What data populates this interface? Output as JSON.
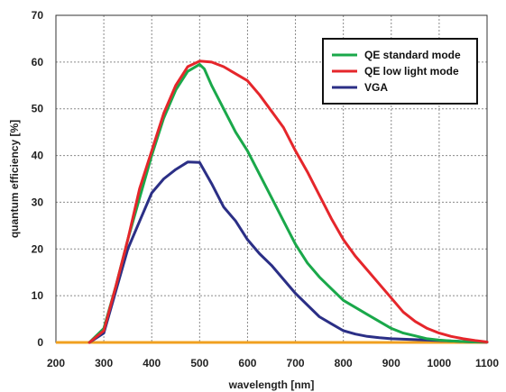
{
  "chart_data": {
    "type": "line",
    "title": "",
    "xlabel": "wavelength [nm]",
    "ylabel": "quantum efficiency [%]",
    "xlim": [
      200,
      1100
    ],
    "ylim": [
      0,
      70
    ],
    "xticks": [
      200,
      300,
      400,
      500,
      600,
      700,
      800,
      900,
      1000,
      1100
    ],
    "yticks": [
      0,
      10,
      20,
      30,
      40,
      50,
      60,
      70
    ],
    "grid": true,
    "legend_position": "top-right",
    "baseline": {
      "color": "#f0a020",
      "x": [
        200,
        1100
      ],
      "y": [
        0,
        0
      ]
    },
    "series": [
      {
        "name": "QE standard mode",
        "color": "#1aa84a",
        "x": [
          270,
          300,
          325,
          350,
          375,
          400,
          425,
          450,
          475,
          500,
          510,
          525,
          550,
          575,
          600,
          625,
          650,
          675,
          700,
          725,
          750,
          775,
          800,
          825,
          850,
          875,
          900,
          925,
          950,
          975,
          1000,
          1025,
          1050,
          1075,
          1100
        ],
        "y": [
          0,
          3,
          12,
          22,
          31,
          40,
          48,
          54,
          58,
          59.5,
          58.5,
          55,
          50,
          45,
          41,
          36,
          31,
          26,
          21,
          17,
          14,
          11.5,
          9,
          7.5,
          6,
          4.5,
          3,
          2,
          1.4,
          0.8,
          0.5,
          0.3,
          0.2,
          0.1,
          0.1
        ]
      },
      {
        "name": "QE low light mode",
        "color": "#e5262b",
        "x": [
          270,
          300,
          325,
          350,
          375,
          400,
          425,
          450,
          475,
          500,
          525,
          550,
          575,
          600,
          625,
          650,
          675,
          700,
          725,
          750,
          775,
          800,
          825,
          850,
          875,
          900,
          925,
          950,
          975,
          1000,
          1025,
          1050,
          1075,
          1100
        ],
        "y": [
          0,
          2.5,
          12,
          22,
          33,
          41,
          49,
          55,
          59,
          60.2,
          60,
          59,
          57.5,
          56,
          53,
          49.5,
          46,
          41,
          36.5,
          31.5,
          26.5,
          22,
          18.5,
          15.5,
          12.5,
          9.5,
          6.5,
          4.5,
          3,
          2,
          1.3,
          0.8,
          0.4,
          0.1
        ]
      },
      {
        "name": "VGA",
        "color": "#2b2f86",
        "x": [
          270,
          300,
          325,
          350,
          375,
          400,
          425,
          450,
          475,
          500,
          525,
          550,
          575,
          600,
          625,
          650,
          675,
          700,
          725,
          750,
          775,
          800,
          825,
          850,
          875,
          900,
          925,
          950,
          975,
          1000,
          1025,
          1050,
          1075,
          1100
        ],
        "y": [
          0,
          2,
          11,
          20,
          26,
          32,
          35,
          37,
          38.6,
          38.5,
          34,
          29,
          26,
          22,
          19,
          16.5,
          13.5,
          10.5,
          8,
          5.5,
          4,
          2.5,
          1.8,
          1.3,
          1,
          0.8,
          0.7,
          0.6,
          0.5,
          0.4,
          0.3,
          0.2,
          0.1,
          0.05
        ]
      }
    ]
  }
}
